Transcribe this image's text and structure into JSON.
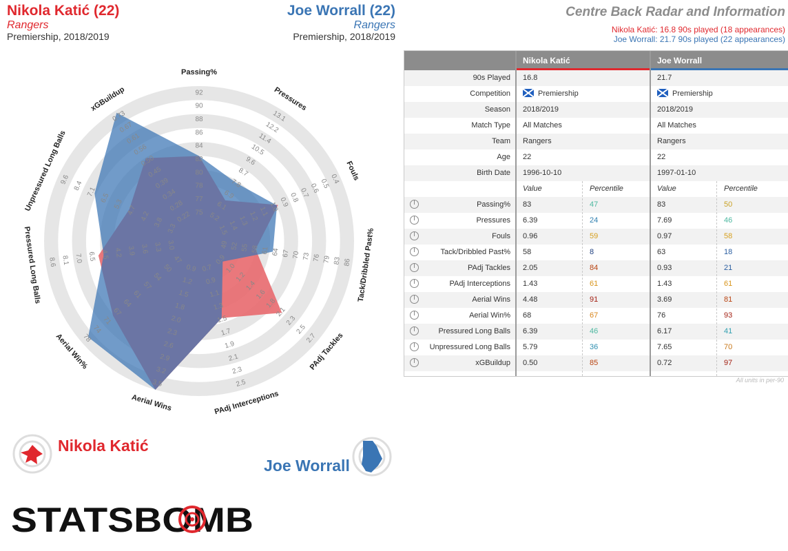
{
  "player1": {
    "name": "Nikola Katić (22)",
    "team": "Rangers",
    "competition": "Premiership, 2018/2019",
    "legend_name": "Nikola Katić",
    "color": "#e0282e"
  },
  "player2": {
    "name": "Joe Worrall (22)",
    "team": "Rangers",
    "competition": "Premiership, 2018/2019",
    "legend_name": "Joe Worrall",
    "color": "#3a75b4"
  },
  "header": {
    "title": "Centre Back Radar and Information",
    "sub1": "Nikola Katić: 16.8 90s played (18 appearances)",
    "sub2": "Joe Worrall: 21.7 90s played (22 appearances)"
  },
  "table": {
    "col1": "Nikola Katić",
    "col2": "Joe Worrall",
    "info_rows": [
      {
        "label": "90s Played",
        "v1": "16.8",
        "v2": "21.7"
      },
      {
        "label": "Competition",
        "v1": "Premiership",
        "v2": "Premiership",
        "flag": true
      },
      {
        "label": "Season",
        "v1": "2018/2019",
        "v2": "2018/2019"
      },
      {
        "label": "Match Type",
        "v1": "All Matches",
        "v2": "All Matches"
      },
      {
        "label": "Team",
        "v1": "Rangers",
        "v2": "Rangers"
      },
      {
        "label": "Age",
        "v1": "22",
        "v2": "22"
      },
      {
        "label": "Birth Date",
        "v1": "1996-10-10",
        "v2": "1997-01-10"
      }
    ],
    "value_header": "Value",
    "percentile_header": "Percentile",
    "stat_rows": [
      {
        "label": "Passing%",
        "v1": "83",
        "p1": "47",
        "v2": "83",
        "p2": "50",
        "c1": "#4cb8a0",
        "c2": "#c9a227"
      },
      {
        "label": "Pressures",
        "v1": "6.39",
        "p1": "24",
        "v2": "7.69",
        "p2": "46",
        "c1": "#2f7fb0",
        "c2": "#4cb8a0"
      },
      {
        "label": "Fouls",
        "v1": "0.96",
        "p1": "59",
        "v2": "0.97",
        "p2": "58",
        "c1": "#d6a020",
        "c2": "#d6a020"
      },
      {
        "label": "Tack/Dribbled Past%",
        "v1": "58",
        "p1": "8",
        "v2": "63",
        "p2": "18",
        "c1": "#1f3f7f",
        "c2": "#2a5ea0"
      },
      {
        "label": "PAdj Tackles",
        "v1": "2.05",
        "p1": "84",
        "v2": "0.93",
        "p2": "21",
        "c1": "#b8420f",
        "c2": "#2a5ea0"
      },
      {
        "label": "PAdj Interceptions",
        "v1": "1.43",
        "p1": "61",
        "v2": "1.43",
        "p2": "61",
        "c1": "#d8941a",
        "c2": "#d8941a"
      },
      {
        "label": "Aerial Wins",
        "v1": "4.48",
        "p1": "91",
        "v2": "3.69",
        "p2": "81",
        "c1": "#a31f12",
        "c2": "#b8420f"
      },
      {
        "label": "Aerial Win%",
        "v1": "68",
        "p1": "67",
        "v2": "76",
        "p2": "93",
        "c1": "#d8841a",
        "c2": "#a31f12"
      },
      {
        "label": "Pressured Long Balls",
        "v1": "6.39",
        "p1": "46",
        "v2": "6.17",
        "p2": "41",
        "c1": "#4cb8a0",
        "c2": "#2f9fb0"
      },
      {
        "label": "Unpressured Long Balls",
        "v1": "5.79",
        "p1": "36",
        "v2": "7.65",
        "p2": "70",
        "c1": "#2f8fb0",
        "c2": "#c8781a"
      },
      {
        "label": "xGBuildup",
        "v1": "0.50",
        "p1": "85",
        "v2": "0.72",
        "p2": "97",
        "c1": "#b8420f",
        "c2": "#a31f12"
      }
    ],
    "units_note": "All units in per-90"
  },
  "chart_data": {
    "type": "radar",
    "axes": [
      {
        "label": "Passing%",
        "ticks": [
          "75",
          "77",
          "78",
          "80",
          "82",
          "84",
          "86",
          "88",
          "90",
          "92"
        ],
        "min": 74,
        "max": 92
      },
      {
        "label": "Pressures",
        "ticks": [
          "5.2",
          "6.1",
          "6.9",
          "7.8",
          "8.7",
          "9.6",
          "10.5",
          "11.4",
          "12.2",
          "13.1"
        ],
        "min": 4.3,
        "max": 13.1
      },
      {
        "label": "Fouls",
        "ticks": [
          "1.5",
          "1.4",
          "1.3",
          "1.2",
          "1.1",
          "1.0",
          "0.9",
          "0.8",
          "0.7",
          "0.6",
          "0.5",
          "0.4"
        ],
        "min": 1.55,
        "max": 0.4
      },
      {
        "label": "Tack/Dribbled Past%",
        "ticks": [
          "49",
          "52",
          "55",
          "58",
          "61",
          "64",
          "67",
          "70",
          "73",
          "76",
          "79",
          "83",
          "86"
        ],
        "min": 46,
        "max": 86
      },
      {
        "label": "PAdj Tackles",
        "ticks": [
          "0.9",
          "1.0",
          "1.2",
          "1.4",
          "1.6",
          "1.8",
          "2.1",
          "2.3",
          "2.5",
          "2.7"
        ],
        "min": 0.7,
        "max": 2.7
      },
      {
        "label": "PAdj Interceptions",
        "ticks": [
          "0.7",
          "0.9",
          "1.1",
          "1.3",
          "1.5",
          "1.7",
          "1.9",
          "2.1",
          "2.3",
          "2.5"
        ],
        "min": 0.5,
        "max": 2.5
      },
      {
        "label": "Aerial Wins",
        "ticks": [
          "0.9",
          "1.2",
          "1.5",
          "1.8",
          "2.0",
          "2.3",
          "2.6",
          "2.9",
          "3.2",
          "3.5"
        ],
        "min": 0.6,
        "max": 3.5
      },
      {
        "label": "Aerial Win%",
        "ticks": [
          "47",
          "50",
          "54",
          "57",
          "61",
          "64",
          "67",
          "71",
          "74",
          "78"
        ],
        "min": 44,
        "max": 78
      },
      {
        "label": "Pressured Long Balls",
        "ticks": [
          "3.0",
          "3.3",
          "3.6",
          "3.9",
          "4.2",
          "4.5",
          "6.5",
          "7.0",
          "8.1",
          "8.6"
        ],
        "min": 2.8,
        "max": 8.6
      },
      {
        "label": "Unpressured Long Balls",
        "ticks": [
          "3.3",
          "3.8",
          "4.2",
          "4.7",
          "5.3",
          "6.5",
          "7.1",
          "8.4",
          "9.6"
        ],
        "min": 2.8,
        "max": 9.6
      },
      {
        "label": "xGBuildup",
        "ticks": [
          "0.22",
          "0.28",
          "0.34",
          "0.39",
          "0.45",
          "0.50",
          "0.56",
          "0.61",
          "0.67",
          "0.73"
        ],
        "min": 0.16,
        "max": 0.73
      }
    ],
    "series": [
      {
        "name": "Nikola Katić",
        "values": [
          83,
          6.39,
          0.96,
          58,
          2.05,
          1.43,
          4.48,
          68,
          6.39,
          5.79,
          0.5
        ]
      },
      {
        "name": "Joe Worrall",
        "values": [
          83,
          7.69,
          0.97,
          63,
          0.93,
          1.43,
          3.69,
          76,
          6.17,
          7.65,
          0.72
        ]
      }
    ]
  },
  "logo": {
    "text": "STATSBOMB"
  }
}
